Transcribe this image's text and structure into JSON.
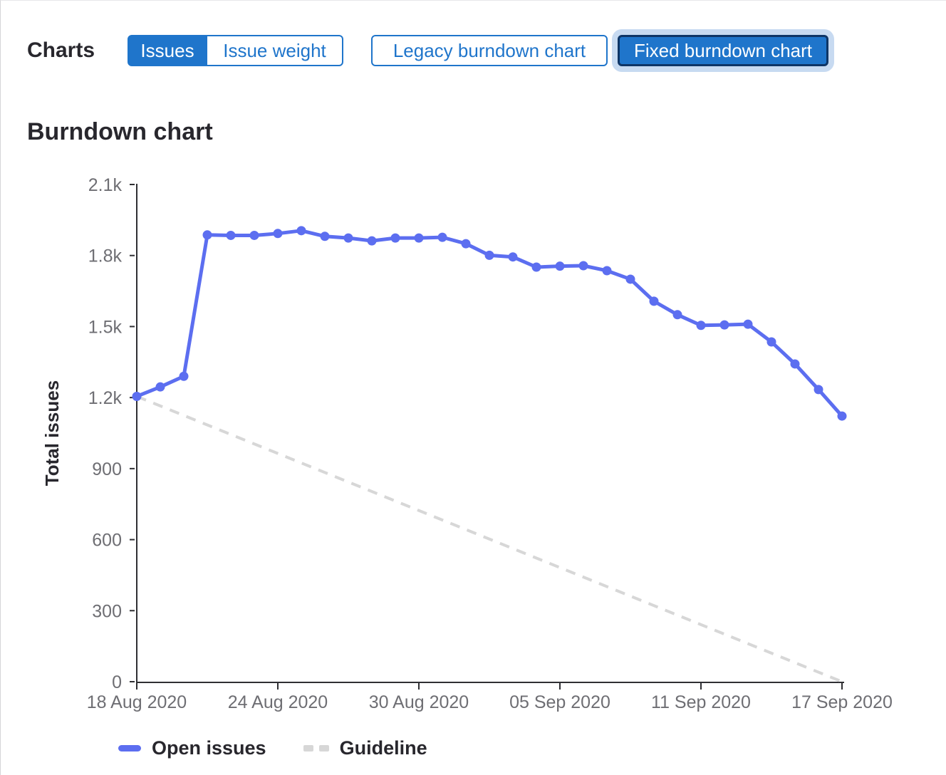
{
  "toolbar": {
    "charts_label": "Charts",
    "metric_toggle": [
      {
        "label": "Issues",
        "active": true
      },
      {
        "label": "Issue weight",
        "active": false
      }
    ],
    "chart_type_toggle": [
      {
        "label": "Legacy burndown chart",
        "active": false
      },
      {
        "label": "Fixed burndown chart",
        "active": true
      }
    ]
  },
  "section": {
    "heading": "Burndown chart"
  },
  "chart_data": {
    "type": "line",
    "title": "Burndown chart",
    "xlabel": "",
    "ylabel": "Total issues",
    "ylim": [
      0,
      2100
    ],
    "grid": false,
    "legend_position": "bottom",
    "y_ticks": [
      {
        "value": 0,
        "label": "0"
      },
      {
        "value": 300,
        "label": "300"
      },
      {
        "value": 600,
        "label": "600"
      },
      {
        "value": 900,
        "label": "900"
      },
      {
        "value": 1200,
        "label": "1.2k"
      },
      {
        "value": 1500,
        "label": "1.5k"
      },
      {
        "value": 1800,
        "label": "1.8k"
      },
      {
        "value": 2100,
        "label": "2.1k"
      }
    ],
    "x_ticks": [
      {
        "index": 0,
        "label": "18 Aug 2020"
      },
      {
        "index": 6,
        "label": "24 Aug 2020"
      },
      {
        "index": 12,
        "label": "30 Aug 2020"
      },
      {
        "index": 18,
        "label": "05 Sep 2020"
      },
      {
        "index": 24,
        "label": "11 Sep 2020"
      },
      {
        "index": 30,
        "label": "17 Sep 2020"
      }
    ],
    "series": [
      {
        "name": "Open issues",
        "style": "solid",
        "color": "#5c6ef0",
        "values": [
          1205,
          1245,
          1290,
          1887,
          1885,
          1885,
          1893,
          1905,
          1881,
          1874,
          1862,
          1874,
          1874,
          1877,
          1850,
          1801,
          1794,
          1751,
          1755,
          1757,
          1736,
          1700,
          1607,
          1550,
          1505,
          1507,
          1510,
          1435,
          1342,
          1234,
          1122
        ]
      },
      {
        "name": "Guideline",
        "style": "dashed",
        "color": "#d7d7d7",
        "points": [
          {
            "index": 0,
            "value": 1205
          },
          {
            "index": 30,
            "value": 0
          }
        ]
      }
    ]
  },
  "legend": {
    "items": [
      {
        "label": "Open issues",
        "swatch": "line"
      },
      {
        "label": "Guideline",
        "swatch": "dash"
      }
    ]
  },
  "colors": {
    "accent": "#1f75cb",
    "open_issues_line": "#5c6ef0",
    "guideline": "#d7d7d7",
    "axis": "#2f2f33",
    "tick_text": "#6e6e73",
    "heading_text": "#28272d",
    "focus_border": "#0e3566",
    "focus_ring": "#c7daf1"
  }
}
